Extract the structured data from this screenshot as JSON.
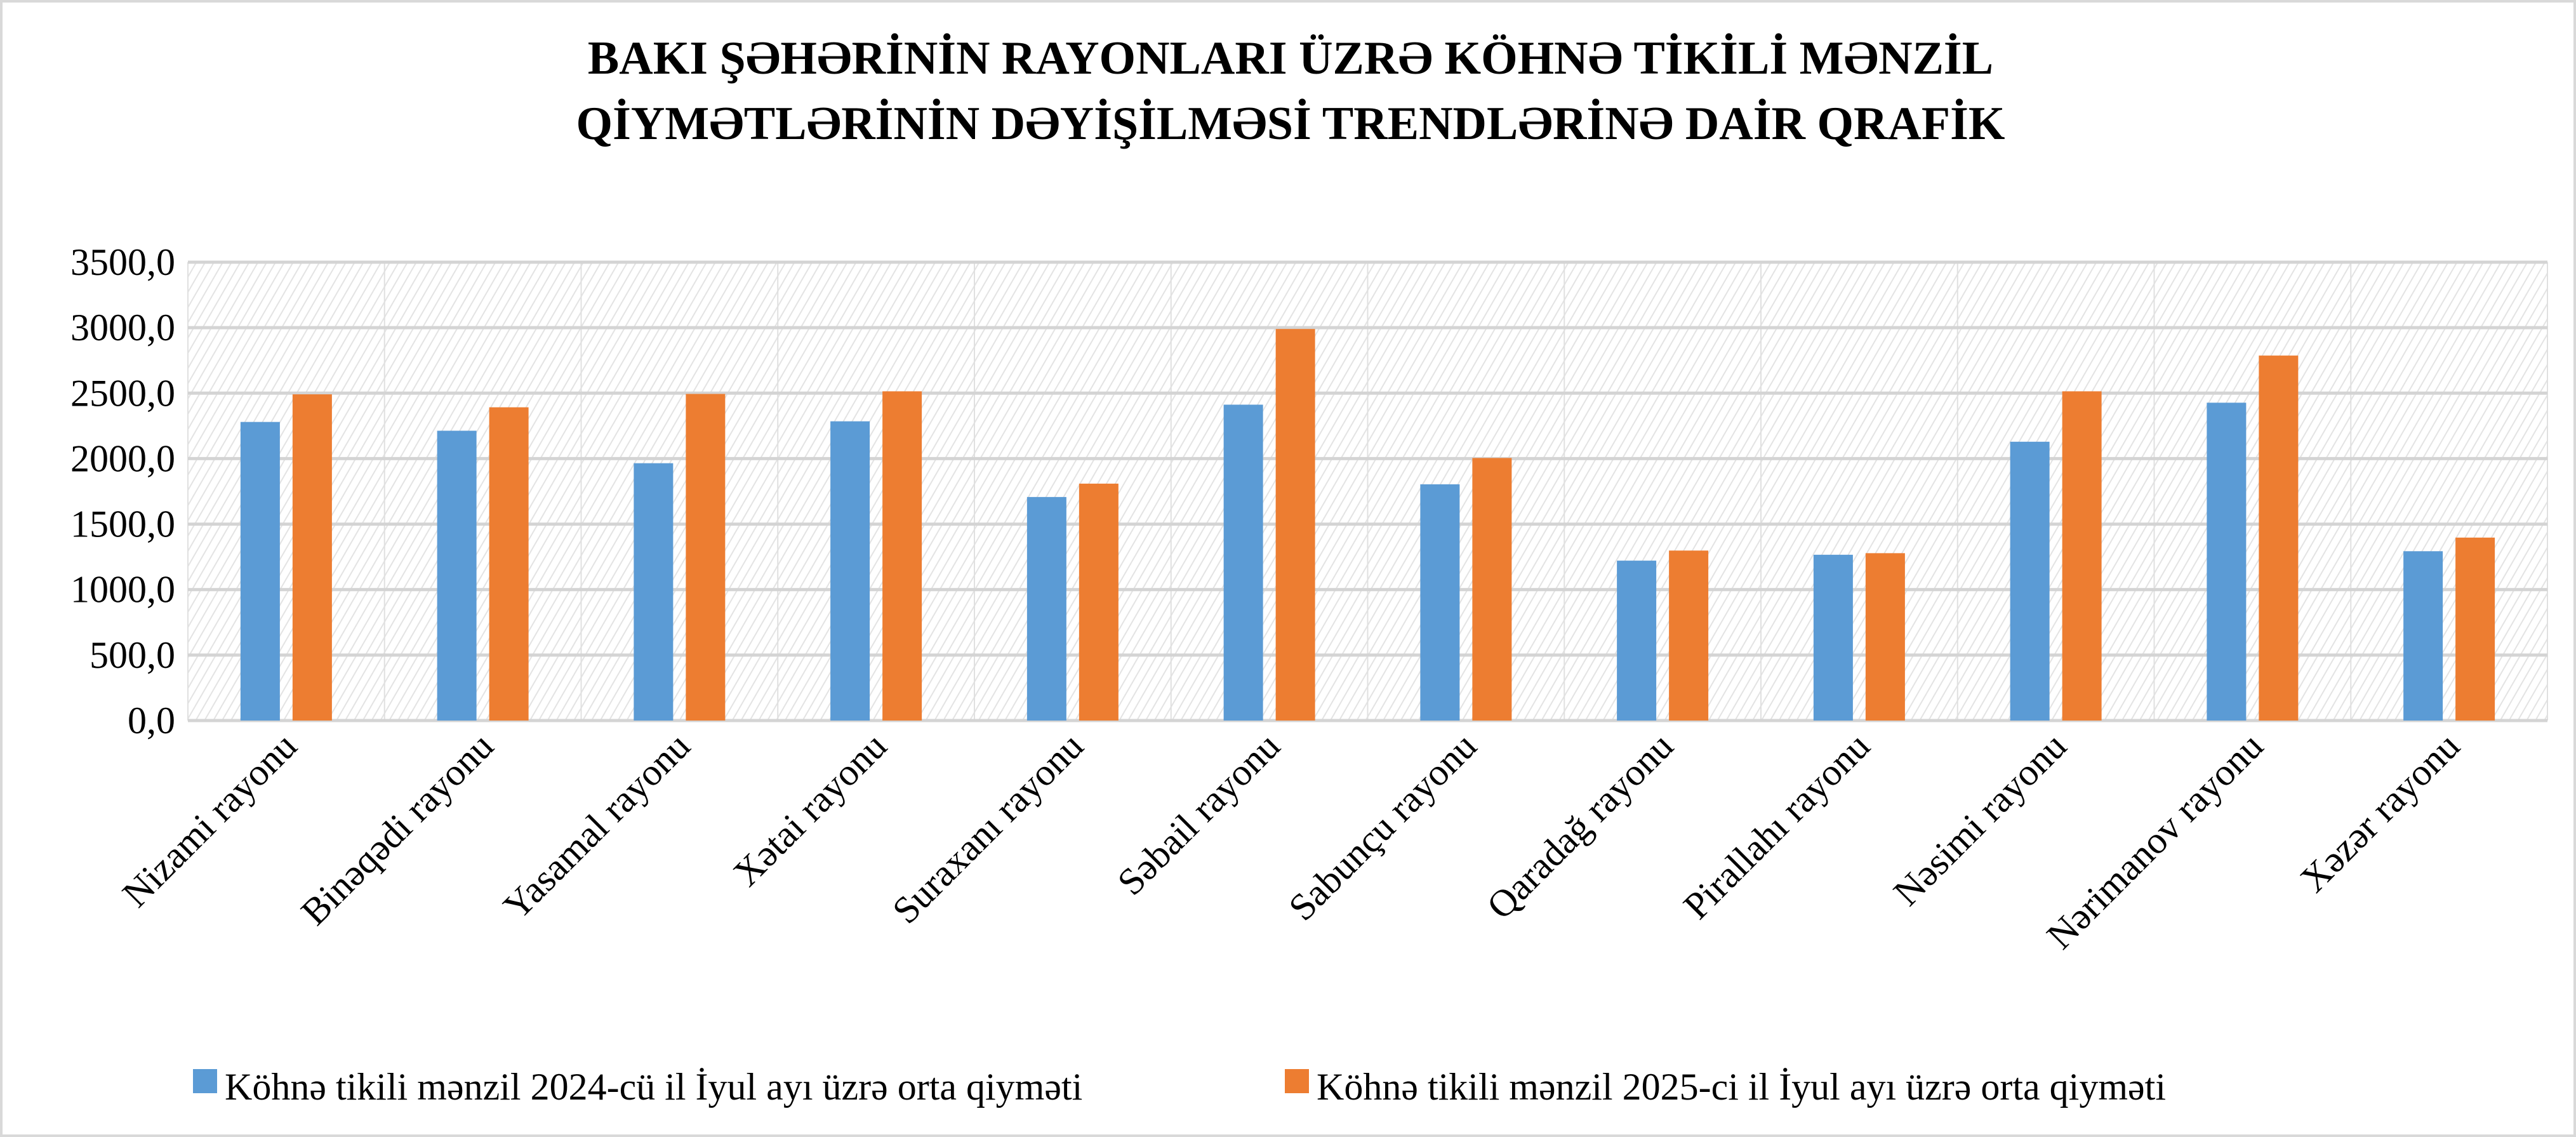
{
  "chart_data": {
    "type": "bar",
    "title": [
      "BAKI ŞƏHƏRİNİN RAYONLARI ÜZRƏ KÖHNƏ TİKİLİ MƏNZİL",
      "QİYMƏTLƏRİNİN DƏYİŞİLMƏSİ TRENDLƏRİNƏ DAİR QRAFİK"
    ],
    "xlabel": "",
    "ylabel": "",
    "ylim": [
      0,
      3500
    ],
    "yticks": [
      "0,0",
      "500,0",
      "1000,0",
      "1500,0",
      "2000,0",
      "2500,0",
      "3000,0",
      "3500,0"
    ],
    "ytick_values": [
      0,
      500,
      1000,
      1500,
      2000,
      2500,
      3000,
      3500
    ],
    "grid": true,
    "legend_position": "bottom",
    "categories": [
      "Nizami rayonu",
      "Binəqədi rayonu",
      "Yasamal rayonu",
      "Xətai rayonu",
      "Suraxanı rayonu",
      "Səbail rayonu",
      "Sabunçu rayonu",
      "Qaradağ rayonu",
      "Pirallahı rayonu",
      "Nəsimi rayonu",
      "Nərimanov rayonu",
      "Xəzər rayonu"
    ],
    "series": [
      {
        "name": "Köhnə tikili mənzil 2024-cü il İyul ayı üzrə orta qiyməti",
        "color": "#5b9bd5",
        "values": [
          2280,
          2213,
          1965,
          2285,
          1707,
          2412,
          1804,
          1221,
          1266,
          2129,
          2427,
          1293
        ]
      },
      {
        "name": "Köhnə tikili mənzil 2025-ci il İyul ayı üzrə orta qiyməti",
        "color": "#ed7d31",
        "values": [
          2491,
          2392,
          2494,
          2514,
          1809,
          2990,
          2005,
          1298,
          1278,
          2514,
          2787,
          1397
        ]
      }
    ]
  }
}
